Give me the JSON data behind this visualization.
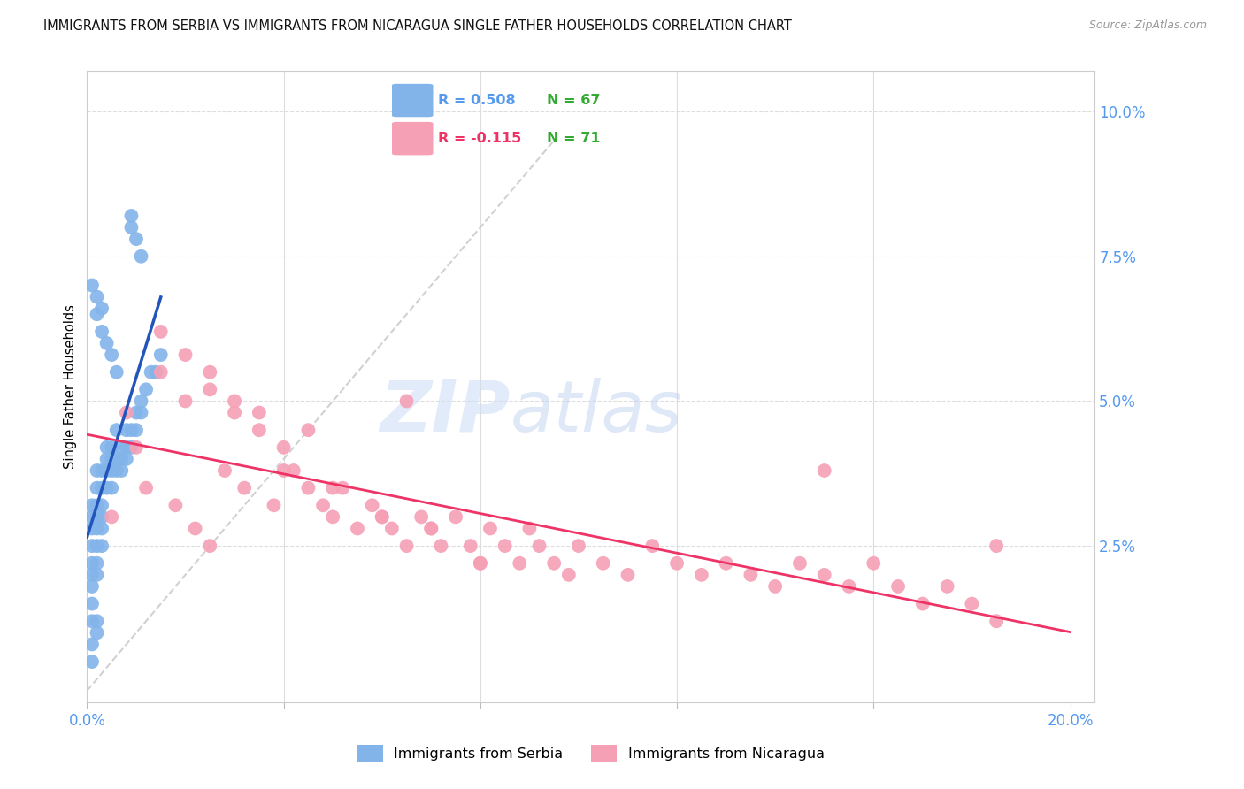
{
  "title": "IMMIGRANTS FROM SERBIA VS IMMIGRANTS FROM NICARAGUA SINGLE FATHER HOUSEHOLDS CORRELATION CHART",
  "source": "Source: ZipAtlas.com",
  "ylabel": "Single Father Households",
  "xlim": [
    0.0,
    0.205
  ],
  "ylim": [
    -0.002,
    0.107
  ],
  "serbia_color": "#82B4EA",
  "nicaragua_color": "#F5A0B5",
  "serbia_line_color": "#2255BB",
  "nicaragua_line_color": "#EE3366",
  "diagonal_color": "#CCCCCC",
  "grid_color": "#DDDDDD",
  "tick_color": "#5599EE",
  "watermark_color": "#D0DEF5",
  "legend_r_serbia_color": "#5599EE",
  "legend_n_color": "#33AA33",
  "legend_r_nicaragua_color": "#EE3366"
}
